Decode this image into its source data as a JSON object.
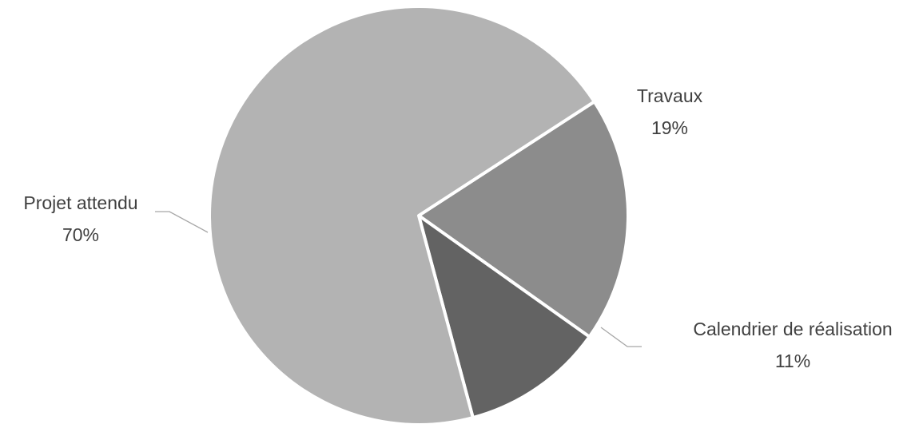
{
  "chart_data": {
    "type": "pie",
    "title": "",
    "slices": [
      {
        "label": "Travaux",
        "percent_label": "19%",
        "value": 19,
        "color": "#8c8c8c"
      },
      {
        "label": "Calendrier de réalisation",
        "percent_label": "11%",
        "value": 11,
        "color": "#636363"
      },
      {
        "label": "Projet attendu",
        "percent_label": "70%",
        "value": 70,
        "color": "#b3b3b3"
      }
    ],
    "legend": "none",
    "data_labels": "outside"
  }
}
